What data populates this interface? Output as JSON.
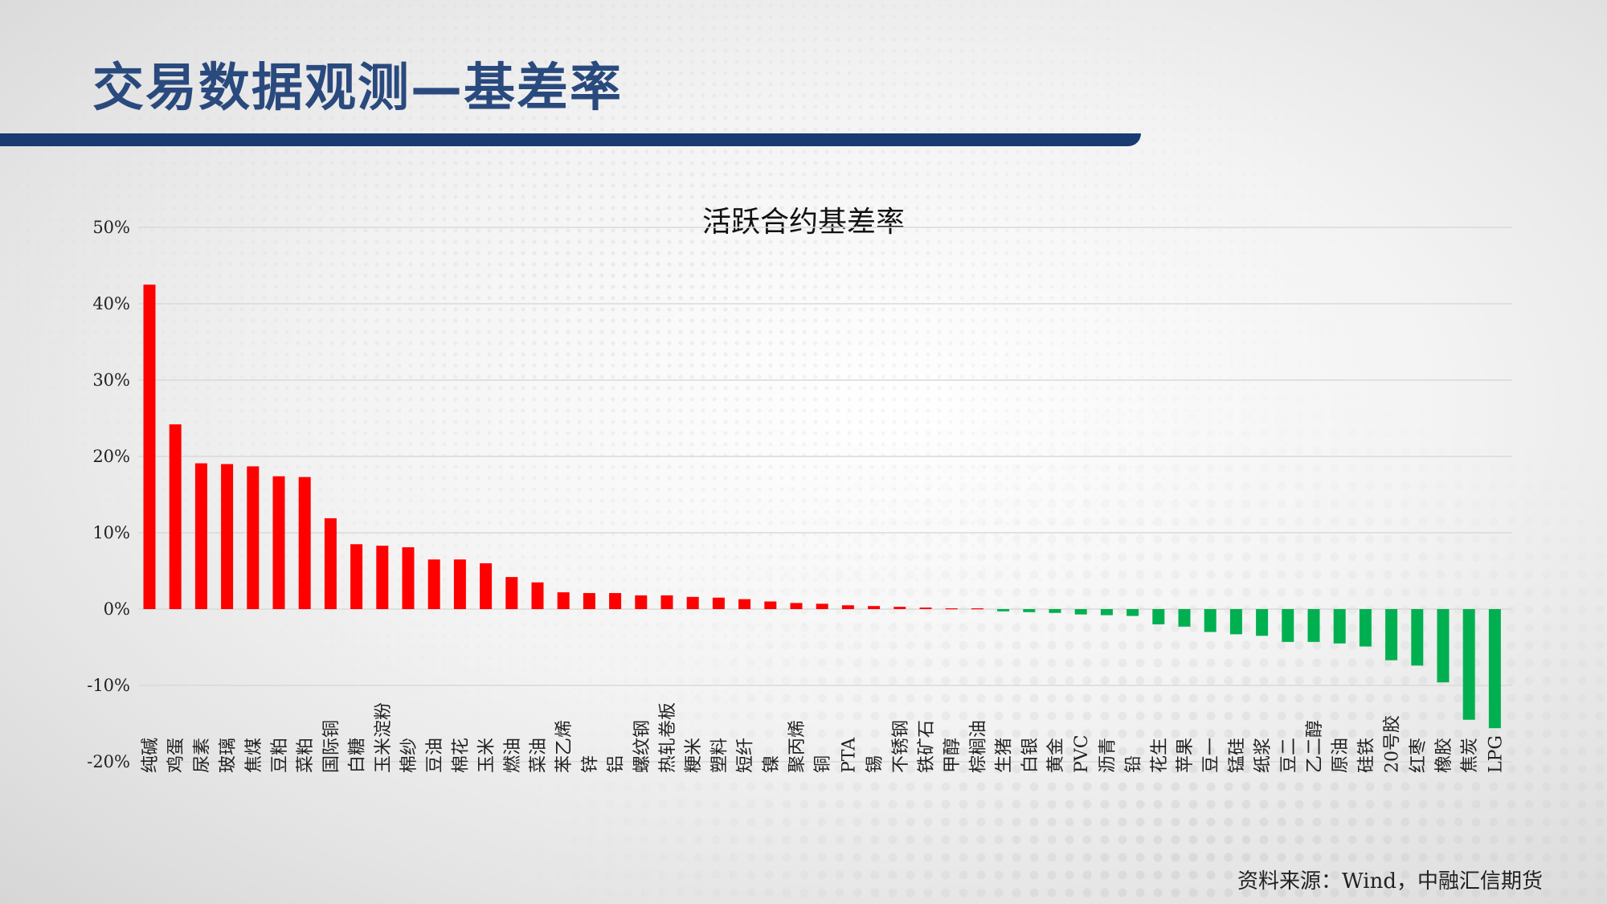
{
  "page": {
    "title": "交易数据观测—基差率",
    "source": "资料来源：Wind，中融汇信期货"
  },
  "colors": {
    "title": "#2a4a7e",
    "title_bar": "#1a3a72",
    "positive": "#ff0000",
    "negative": "#00b050",
    "gridline": "#d9d9d9"
  },
  "chart_data": {
    "type": "bar",
    "title": "活跃合约基差率",
    "xlabel": "",
    "ylabel": "",
    "ylim": [
      -20,
      50
    ],
    "yticks": [
      -20,
      -10,
      0,
      10,
      20,
      30,
      40,
      50
    ],
    "ytick_labels": [
      "-20%",
      "-10%",
      "0%",
      "10%",
      "20%",
      "30%",
      "40%",
      "50%"
    ],
    "grid": true,
    "legend": "none",
    "categories": [
      "纯碱",
      "鸡蛋",
      "尿素",
      "玻璃",
      "焦煤",
      "豆粕",
      "菜粕",
      "国际铜",
      "白糖",
      "玉米淀粉",
      "棉纱",
      "豆油",
      "棉花",
      "玉米",
      "燃油",
      "菜油",
      "苯乙烯",
      "锌",
      "铝",
      "螺纹钢",
      "热轧卷板",
      "粳米",
      "塑料",
      "短纤",
      "镍",
      "聚丙烯",
      "铜",
      "PTA",
      "锡",
      "不锈钢",
      "铁矿石",
      "甲醇",
      "棕榈油",
      "生猪",
      "白银",
      "黄金",
      "PVC",
      "沥青",
      "铅",
      "花生",
      "苹果",
      "豆一",
      "锰硅",
      "纸浆",
      "豆二",
      "乙二醇",
      "原油",
      "硅铁",
      "20号胶",
      "红枣",
      "橡胶",
      "焦炭",
      "LPG"
    ],
    "values": [
      42.5,
      24.2,
      19.1,
      19.0,
      18.7,
      17.4,
      17.3,
      11.9,
      8.5,
      8.3,
      8.1,
      6.5,
      6.5,
      6.0,
      4.2,
      3.5,
      2.2,
      2.1,
      2.1,
      1.8,
      1.8,
      1.6,
      1.5,
      1.3,
      1.0,
      0.8,
      0.7,
      0.5,
      0.4,
      0.3,
      0.2,
      0.1,
      0.1,
      -0.3,
      -0.4,
      -0.5,
      -0.7,
      -0.8,
      -0.9,
      -2.0,
      -2.3,
      -3.0,
      -3.3,
      -3.5,
      -4.3,
      -4.3,
      -4.5,
      -4.9,
      -6.7,
      -7.4,
      -9.6,
      -14.5,
      -15.6
    ]
  }
}
